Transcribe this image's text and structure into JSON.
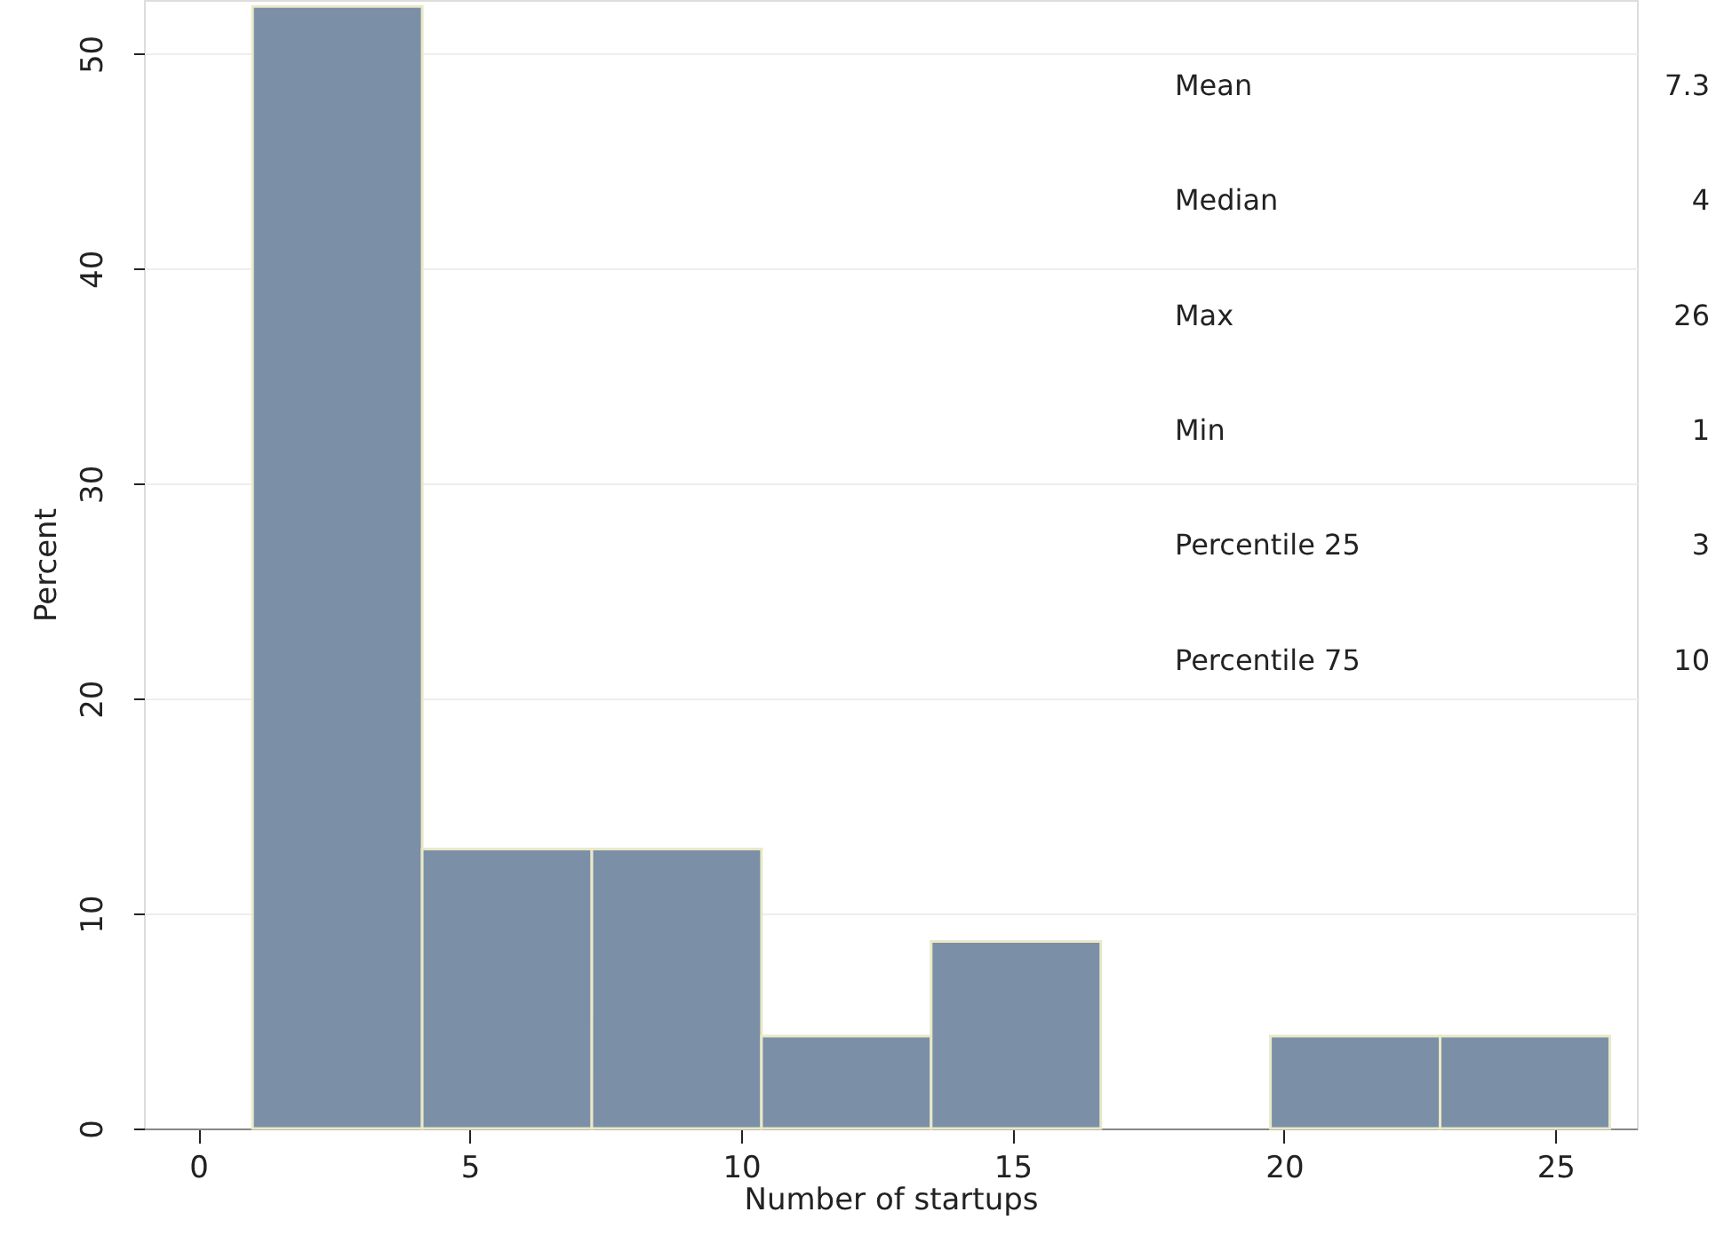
{
  "chart_data": {
    "type": "histogram",
    "bins": [
      1,
      4.125,
      7.25,
      10.375,
      13.5,
      16.625,
      19.75,
      22.875,
      26
    ],
    "values": [
      52.2,
      13,
      13,
      4.3,
      8.7,
      0,
      4.3,
      4.3
    ],
    "color": "#7b8fa6",
    "xlabel": "Number of startups",
    "ylabel": "Percent",
    "xlim": [
      -1,
      26.5
    ],
    "ylim": [
      0,
      52.5
    ],
    "xticks": [
      0,
      5,
      10,
      15,
      20,
      25
    ],
    "yticks": [
      0,
      10,
      20,
      30,
      40,
      50
    ],
    "grid": "y",
    "annotations": [
      "Mean",
      "7.3",
      "Median",
      "4",
      "Max",
      "26",
      "Min",
      "1",
      "Percentile 25",
      "3",
      "Percentile 75",
      "10"
    ]
  }
}
